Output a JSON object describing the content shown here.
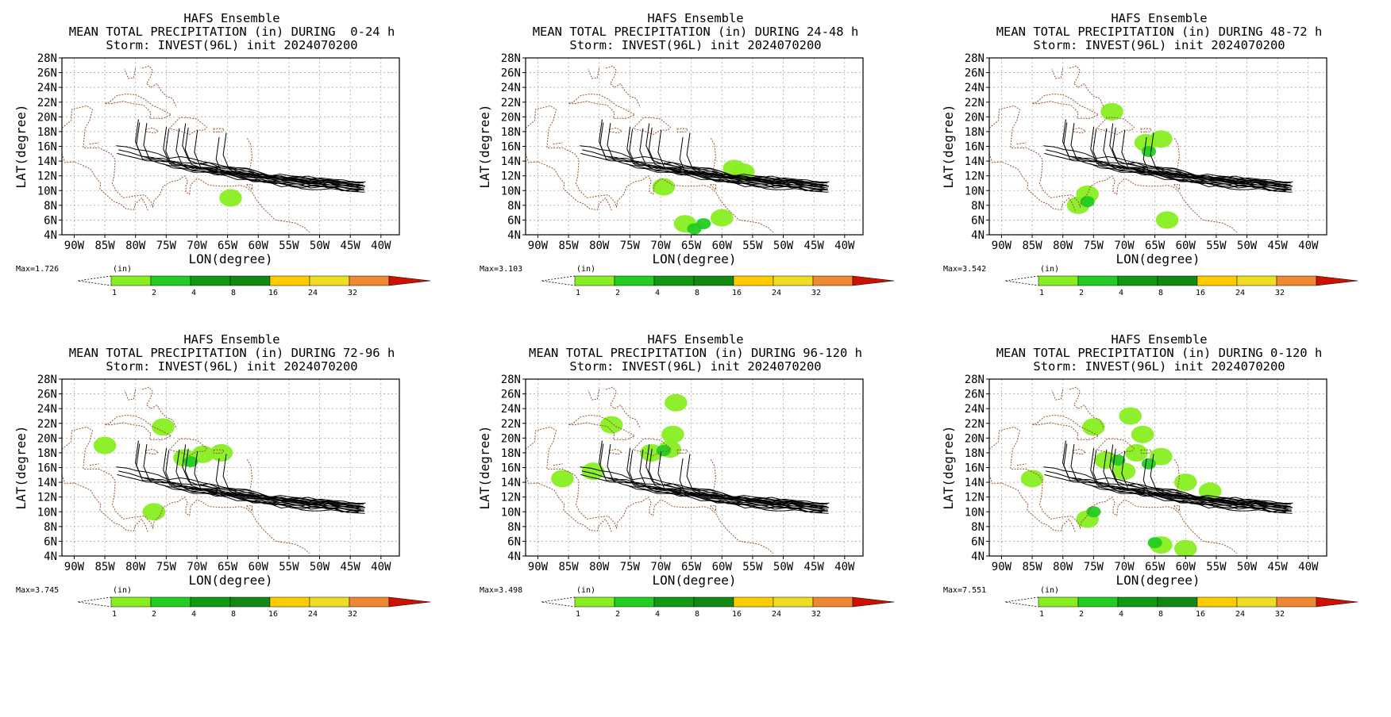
{
  "figure": {
    "lat_labels": [
      "28N",
      "26N",
      "24N",
      "22N",
      "20N",
      "18N",
      "16N",
      "14N",
      "12N",
      "10N",
      "8N",
      "6N",
      "4N"
    ],
    "lon_labels": [
      "90W",
      "85W",
      "80W",
      "75W",
      "70W",
      "65W",
      "60W",
      "55W",
      "50W",
      "45W",
      "40W"
    ],
    "xlabel": "LON(degree)",
    "ylabel": "LAT(degree)",
    "unit_label": "(in)",
    "colorbar": {
      "ticks": [
        "1",
        "2",
        "4",
        "8",
        "16",
        "24",
        "32"
      ],
      "colors": [
        "#88ee22",
        "#22cc22",
        "#119911",
        "#118811",
        "#ffcc00",
        "#eedd22",
        "#ee8833",
        "#cc1100"
      ]
    },
    "track_color": "#000000",
    "coast_color": "#a0522d"
  },
  "panels": [
    {
      "title1": "HAFS Ensemble",
      "title2": "MEAN TOTAL PRECIPITATION (in) DURING  0-24 h",
      "title3": "Storm: INVEST(96L) init 2024070200",
      "max_label": "Max=1.726",
      "precip": [
        {
          "lon": -64.5,
          "lat": 9.0,
          "level": 1
        }
      ]
    },
    {
      "title1": "HAFS Ensemble",
      "title2": "MEAN TOTAL PRECIPITATION (in) DURING 24-48 h",
      "title3": "Storm: INVEST(96L) init 2024070200",
      "max_label": "Max=3.103",
      "precip": [
        {
          "lon": -58,
          "lat": 13.0,
          "level": 1
        },
        {
          "lon": -56.5,
          "lat": 12.5,
          "level": 1
        },
        {
          "lon": -69.5,
          "lat": 10.5,
          "level": 1
        },
        {
          "lon": -66,
          "lat": 5.5,
          "level": 1
        },
        {
          "lon": -63,
          "lat": 5.5,
          "level": 2
        },
        {
          "lon": -64.5,
          "lat": 4.8,
          "level": 2
        },
        {
          "lon": -60,
          "lat": 6.3,
          "level": 1
        }
      ]
    },
    {
      "title1": "HAFS Ensemble",
      "title2": "MEAN TOTAL PRECIPITATION (in) DURING 48-72 h",
      "title3": "Storm: INVEST(96L) init 2024070200",
      "max_label": "Max=3.542",
      "precip": [
        {
          "lon": -66.5,
          "lat": 16.5,
          "level": 1
        },
        {
          "lon": -64,
          "lat": 17.0,
          "level": 1
        },
        {
          "lon": -66,
          "lat": 15.3,
          "level": 2
        },
        {
          "lon": -72,
          "lat": 20.7,
          "level": 1
        },
        {
          "lon": -76,
          "lat": 9.5,
          "level": 1
        },
        {
          "lon": -77.5,
          "lat": 8.0,
          "level": 1
        },
        {
          "lon": -76,
          "lat": 8.5,
          "level": 2
        },
        {
          "lon": -63,
          "lat": 6.0,
          "level": 1
        }
      ]
    },
    {
      "title1": "HAFS Ensemble",
      "title2": "MEAN TOTAL PRECIPITATION (in) DURING 72-96 h",
      "title3": "Storm: INVEST(96L) init 2024070200",
      "max_label": "Max=3.745",
      "precip": [
        {
          "lon": -72,
          "lat": 17.3,
          "level": 1
        },
        {
          "lon": -69,
          "lat": 17.8,
          "level": 1
        },
        {
          "lon": -71,
          "lat": 16.8,
          "level": 2
        },
        {
          "lon": -66,
          "lat": 18.0,
          "level": 1
        },
        {
          "lon": -75.5,
          "lat": 21.5,
          "level": 1
        },
        {
          "lon": -85,
          "lat": 19.0,
          "level": 1
        },
        {
          "lon": -77,
          "lat": 10.0,
          "level": 1
        }
      ]
    },
    {
      "title1": "HAFS Ensemble",
      "title2": "MEAN TOTAL PRECIPITATION (in) DURING 96-120 h",
      "title3": "Storm: INVEST(96L) init 2024070200",
      "max_label": "Max=3.498",
      "precip": [
        {
          "lon": -71.5,
          "lat": 18.0,
          "level": 1
        },
        {
          "lon": -68.5,
          "lat": 18.5,
          "level": 1
        },
        {
          "lon": -69.5,
          "lat": 18.3,
          "level": 2
        },
        {
          "lon": -68,
          "lat": 20.5,
          "level": 1
        },
        {
          "lon": -67.5,
          "lat": 24.8,
          "level": 1
        },
        {
          "lon": -78,
          "lat": 21.8,
          "level": 1
        },
        {
          "lon": -86,
          "lat": 14.5,
          "level": 1
        },
        {
          "lon": -81,
          "lat": 15.5,
          "level": 1
        }
      ]
    },
    {
      "title1": "HAFS Ensemble",
      "title2": "MEAN TOTAL PRECIPITATION (in) DURING 0-120 h",
      "title3": "Storm: INVEST(96L) init 2024070200",
      "max_label": "Max=7.551",
      "precip": [
        {
          "lon": -73,
          "lat": 17.0,
          "level": 1
        },
        {
          "lon": -68,
          "lat": 18.0,
          "level": 1
        },
        {
          "lon": -64,
          "lat": 17.5,
          "level": 1
        },
        {
          "lon": -67,
          "lat": 20.5,
          "level": 1
        },
        {
          "lon": -70,
          "lat": 15.5,
          "level": 1
        },
        {
          "lon": -60,
          "lat": 14.0,
          "level": 1
        },
        {
          "lon": -56,
          "lat": 12.8,
          "level": 1
        },
        {
          "lon": -71,
          "lat": 17.0,
          "level": 2
        },
        {
          "lon": -66,
          "lat": 16.5,
          "level": 2
        },
        {
          "lon": -69,
          "lat": 23.0,
          "level": 1
        },
        {
          "lon": -75,
          "lat": 21.5,
          "level": 1
        },
        {
          "lon": -76,
          "lat": 9.0,
          "level": 1
        },
        {
          "lon": -75,
          "lat": 10.0,
          "level": 2
        },
        {
          "lon": -64,
          "lat": 5.5,
          "level": 1
        },
        {
          "lon": -65,
          "lat": 5.8,
          "level": 2
        },
        {
          "lon": -60,
          "lat": 5.0,
          "level": 1
        },
        {
          "lon": -85,
          "lat": 14.5,
          "level": 1
        }
      ]
    }
  ]
}
